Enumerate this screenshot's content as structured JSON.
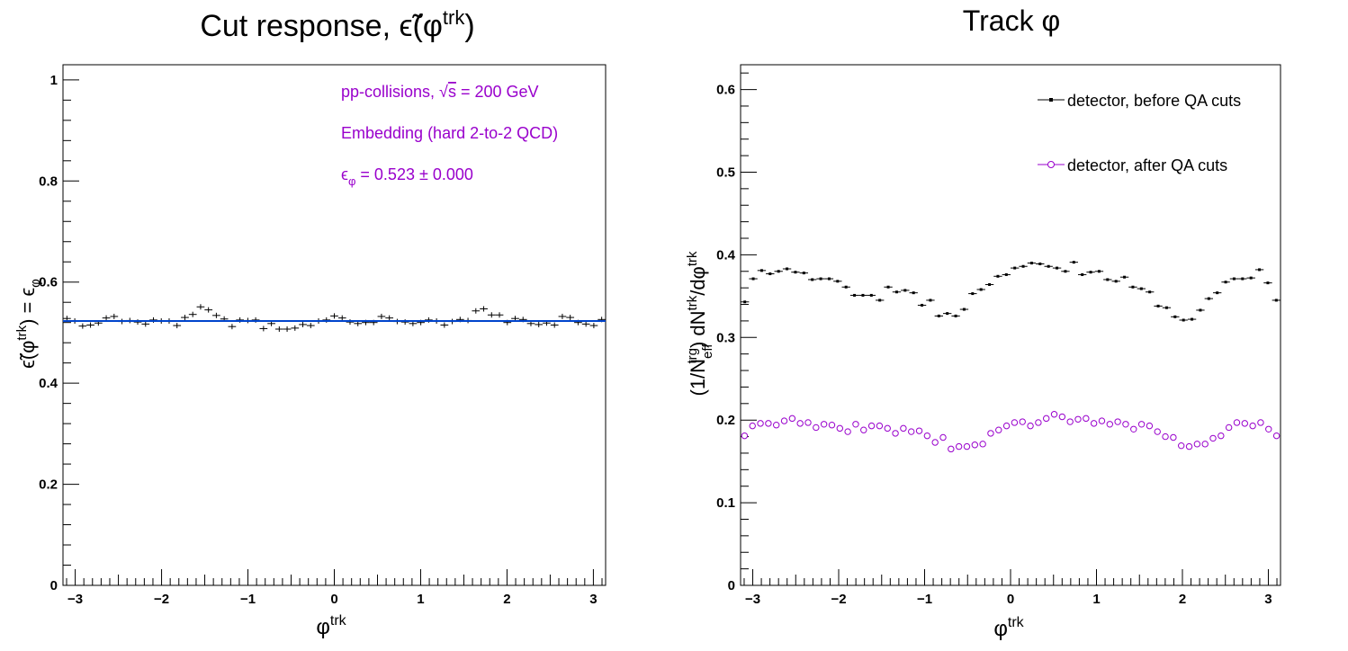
{
  "colors": {
    "black": "#000000",
    "purple": "#9900cc",
    "fit_blue": "#0044cc"
  },
  "chart_data": [
    {
      "type": "scatter",
      "title_text": "Cut response, ",
      "title_symbol": "ϵ̃(φ",
      "title_sup": "trk",
      "title_close": ")",
      "xlabel_main": "φ",
      "xlabel_sup": "trk",
      "ylabel": "ϵ̃(φ^trk) = ϵ_φ",
      "ylabel_parts": {
        "a": "ϵ̃(φ",
        "sup": "trk",
        "b": ") = ϵ",
        "sub": "φ"
      },
      "xlim": [
        -3.1416,
        3.1416
      ],
      "ylim": [
        0,
        1.03
      ],
      "x_ticks": [
        -3,
        -2,
        -1,
        0,
        1,
        2,
        3
      ],
      "x_tick_labels": [
        "−3",
        "−2",
        "−1",
        "0",
        "1",
        "2",
        "3"
      ],
      "y_ticks": [
        0,
        0.2,
        0.4,
        0.6,
        0.8,
        1
      ],
      "y_tick_labels": [
        "0",
        "0.2",
        "0.4",
        "0.6",
        "0.8",
        "1"
      ],
      "annotations": {
        "line1_a": "pp-collisions, ",
        "line1_sqrt": "√",
        "line1_s": "s",
        "line1_b": " = 200 GeV",
        "line2": "Embedding (hard 2-to-2 QCD)",
        "line3_a": "ϵ",
        "line3_sub": "φ",
        "line3_b": " = 0.523 ± 0.000"
      },
      "fit_value": 0.523,
      "series": [
        {
          "color": "#000000",
          "marker": "cross",
          "values": [
            0.528,
            0.523,
            0.513,
            0.515,
            0.519,
            0.529,
            0.532,
            0.522,
            0.524,
            0.521,
            0.517,
            0.525,
            0.523,
            0.523,
            0.514,
            0.53,
            0.536,
            0.551,
            0.545,
            0.534,
            0.527,
            0.512,
            0.525,
            0.524,
            0.525,
            0.508,
            0.518,
            0.507,
            0.507,
            0.509,
            0.516,
            0.514,
            0.523,
            0.525,
            0.533,
            0.529,
            0.521,
            0.518,
            0.52,
            0.52,
            0.532,
            0.529,
            0.522,
            0.521,
            0.518,
            0.52,
            0.525,
            0.523,
            0.515,
            0.522,
            0.526,
            0.524,
            0.543,
            0.547,
            0.535,
            0.535,
            0.52,
            0.528,
            0.526,
            0.518,
            0.516,
            0.519,
            0.515,
            0.532,
            0.53,
            0.52,
            0.517,
            0.514,
            0.526
          ]
        }
      ]
    },
    {
      "type": "scatter",
      "title_text": "Track φ",
      "xlabel_main": "φ",
      "xlabel_sup": "trk",
      "ylabel": "(1/N^trg_eff) dN^trk/dφ^trk",
      "ylabel_parts": {
        "a": "(1/N",
        "sub": "eff",
        "sup": "trg",
        "b": ") dN",
        "sup2": "trk",
        "c": "/dφ",
        "sup3": "trk"
      },
      "xlim": [
        -3.1416,
        3.1416
      ],
      "ylim": [
        0,
        0.63
      ],
      "x_ticks": [
        -3,
        -2,
        -1,
        0,
        1,
        2,
        3
      ],
      "x_tick_labels": [
        "−3",
        "−2",
        "−1",
        "0",
        "1",
        "2",
        "3"
      ],
      "y_ticks": [
        0,
        0.1,
        0.2,
        0.3,
        0.4,
        0.5,
        0.6
      ],
      "y_tick_labels": [
        "0",
        "0.1",
        "0.2",
        "0.3",
        "0.4",
        "0.5",
        "0.6"
      ],
      "legend_position": "top-right",
      "series": [
        {
          "name": "detector, before QA cuts",
          "color": "#000000",
          "marker": "dot",
          "values": [
            0.343,
            0.371,
            0.381,
            0.377,
            0.38,
            0.383,
            0.379,
            0.378,
            0.37,
            0.371,
            0.371,
            0.368,
            0.361,
            0.351,
            0.351,
            0.351,
            0.345,
            0.361,
            0.355,
            0.357,
            0.354,
            0.339,
            0.345,
            0.326,
            0.329,
            0.326,
            0.334,
            0.353,
            0.358,
            0.364,
            0.374,
            0.376,
            0.384,
            0.386,
            0.39,
            0.389,
            0.386,
            0.384,
            0.38,
            0.391,
            0.376,
            0.379,
            0.38,
            0.37,
            0.368,
            0.373,
            0.361,
            0.359,
            0.355,
            0.338,
            0.336,
            0.325,
            0.321,
            0.322,
            0.333,
            0.347,
            0.354,
            0.367,
            0.371,
            0.371,
            0.372,
            0.382,
            0.366,
            0.345
          ]
        },
        {
          "name": "detector, after QA cuts",
          "color": "#9900cc",
          "marker": "open-circle",
          "values": [
            0.181,
            0.193,
            0.196,
            0.196,
            0.194,
            0.199,
            0.202,
            0.196,
            0.197,
            0.191,
            0.195,
            0.194,
            0.19,
            0.186,
            0.195,
            0.188,
            0.193,
            0.193,
            0.19,
            0.184,
            0.19,
            0.186,
            0.187,
            0.181,
            0.173,
            0.179,
            0.165,
            0.168,
            0.168,
            0.17,
            0.171,
            0.184,
            0.188,
            0.193,
            0.197,
            0.198,
            0.193,
            0.197,
            0.202,
            0.207,
            0.204,
            0.198,
            0.201,
            0.202,
            0.196,
            0.199,
            0.195,
            0.198,
            0.195,
            0.189,
            0.195,
            0.193,
            0.186,
            0.18,
            0.179,
            0.169,
            0.168,
            0.171,
            0.171,
            0.178,
            0.181,
            0.191,
            0.197,
            0.196,
            0.193,
            0.197,
            0.189,
            0.181
          ]
        }
      ]
    }
  ]
}
